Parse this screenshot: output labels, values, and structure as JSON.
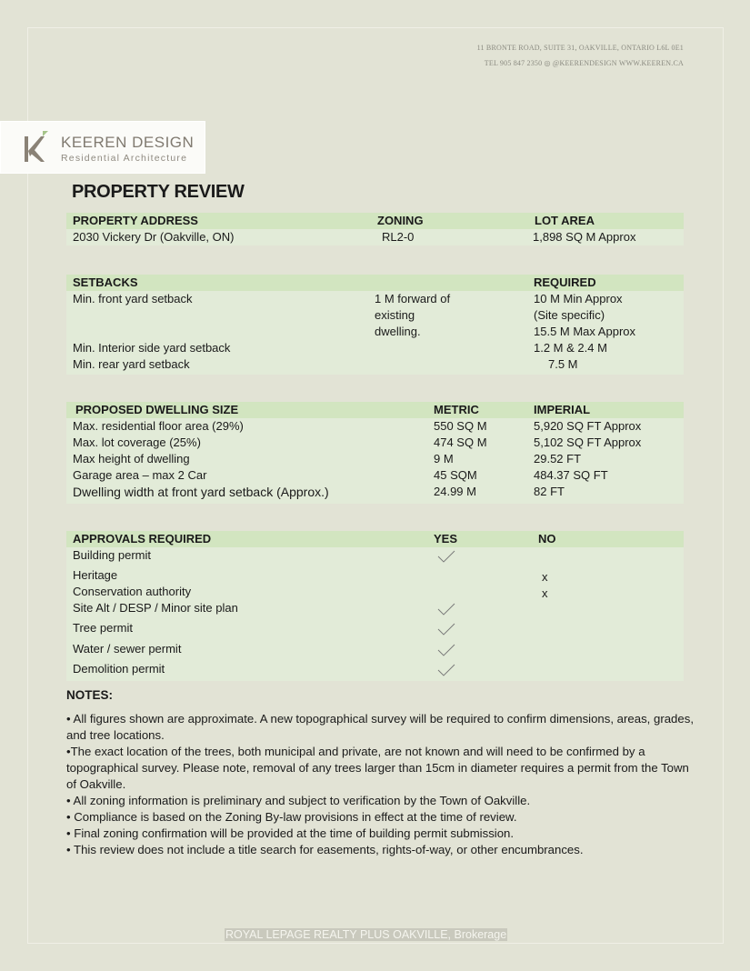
{
  "header": {
    "address_line1": "11 BRONTE ROAD, SUITE 31, OAKVILLE, ONTARIO L6L 0E1",
    "address_line2": "TEL 905 847 2350 ◎ @KEERENDESIGN   WWW.KEEREN.CA"
  },
  "logo": {
    "name": "KEEREN DESIGN",
    "tagline": "Residential Architecture"
  },
  "title": "PROPERTY REVIEW",
  "property": {
    "headers": [
      "PROPERTY ADDRESS",
      "ZONING",
      "LOT AREA"
    ],
    "row": [
      "2030 Vickery Dr (Oakville, ON)",
      "RL2-0",
      "1,898 SQ M Approx"
    ]
  },
  "setbacks": {
    "headers": [
      "SETBACKS",
      "REQUIRED"
    ],
    "front": {
      "label": "Min. front yard setback",
      "note": [
        "1 M forward of",
        "existing",
        "dwelling."
      ],
      "required": [
        "10 M Min Approx",
        "(Site specific)",
        "15.5 M Max Approx"
      ]
    },
    "interior": {
      "label": "Min. Interior side yard setback",
      "required": "1.2 M & 2.4 M"
    },
    "rear": {
      "label": "Min. rear yard setback",
      "required": "7.5 M"
    }
  },
  "dwelling": {
    "headers": [
      "PROPOSED DWELLING SIZE",
      "METRIC",
      "IMPERIAL"
    ],
    "rows": [
      [
        "Max. residential floor area (29%)",
        "550 SQ M",
        "5,920 SQ FT Approx"
      ],
      [
        "Max. lot coverage (25%)",
        "474 SQ M",
        "5,102 SQ FT Approx"
      ],
      [
        "Max height of dwelling",
        "9 M",
        "29.52 FT"
      ],
      [
        "Garage area – max 2 Car",
        "45 SQM",
        "484.37 SQ FT"
      ],
      [
        "Dwelling width at front yard setback (Approx.)",
        "24.99 M",
        "82 FT"
      ]
    ]
  },
  "approvals": {
    "headers": [
      "APPROVALS REQUIRED",
      "YES",
      "NO"
    ],
    "rows": [
      {
        "label": "Building permit",
        "yes": true,
        "no": ""
      },
      {
        "label": "Heritage",
        "yes": false,
        "no": "x"
      },
      {
        "label": "Conservation authority",
        "yes": false,
        "no": "x"
      },
      {
        "label": "Site Alt / DESP / Minor site plan",
        "yes": true,
        "no": ""
      },
      {
        "label": "Tree permit",
        "yes": true,
        "no": ""
      },
      {
        "label": "Water / sewer permit",
        "yes": true,
        "no": ""
      },
      {
        "label": "Demolition permit",
        "yes": true,
        "no": ""
      }
    ]
  },
  "notes": {
    "title": "NOTES:",
    "items": [
      "• All figures shown are approximate. A new topographical survey will be required to confirm dimensions, areas, grades, and tree locations.",
      "•The exact location of the trees, both municipal and private, are not known and will need to be confirmed by a topographical survey. Please note, removal of any trees larger than 15cm in diameter requires a permit from the Town of Oakville.",
      "• All zoning information is preliminary and subject to verification by the Town of Oakville.",
      "• Compliance is based on the Zoning By-law provisions in effect at the time of review.",
      "• Final zoning confirmation will be provided at the time of building permit submission.",
      "• This review does not include a title search for easements, rights-of-way, or other encumbrances."
    ]
  },
  "footer": "ROYAL LEPAGE REALTY PLUS OAKVILLE, Brokerage",
  "colors": {
    "background": "#e2e3d5",
    "header_band": "#d2e5c0",
    "body_band": "#e2ebd8"
  }
}
